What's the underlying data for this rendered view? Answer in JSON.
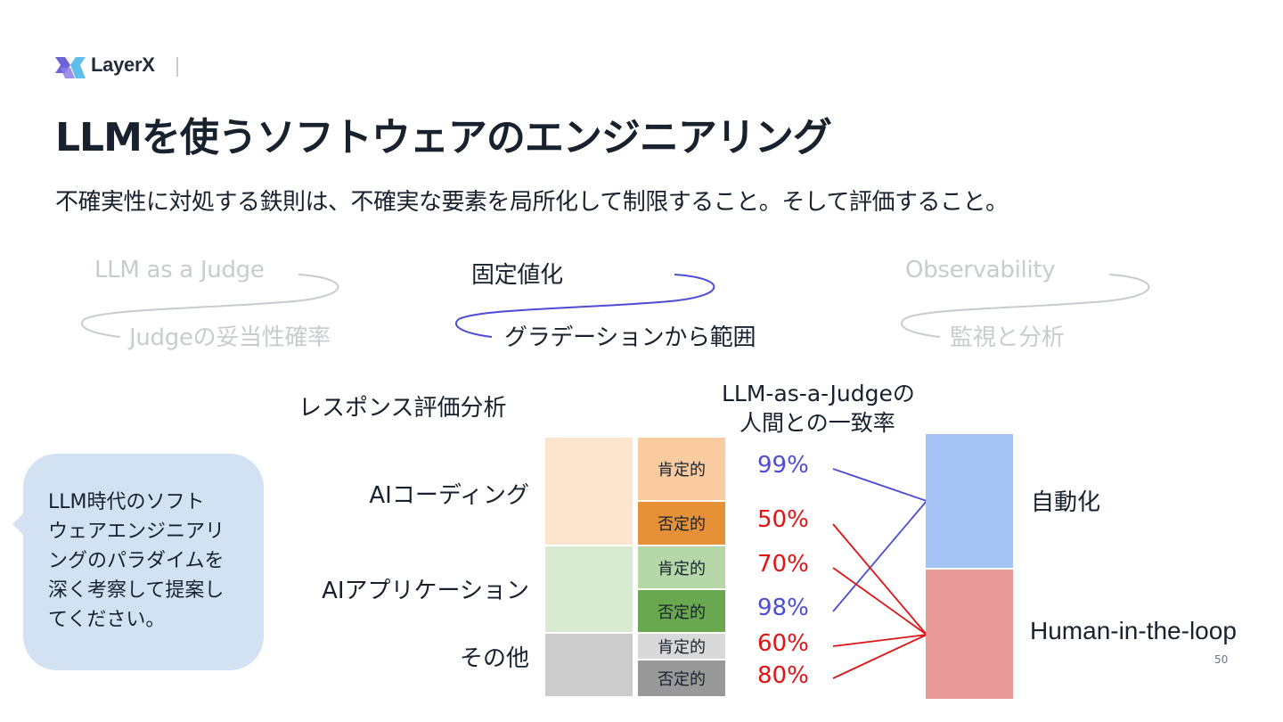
{
  "header": {
    "brand": "LayerX",
    "title": "LLMを使うソフトウェアのエンジニアリング",
    "subtitle": "不確実性に対処する鉄則は、不確実な要素を局所化して制限すること。そして評価すること。"
  },
  "flows": [
    {
      "top": "LLM as a Judge",
      "bottom": "Judgeの妥当性確率",
      "state": "muted"
    },
    {
      "top": "固定値化",
      "bottom": "グラデーションから範囲",
      "state": "active"
    },
    {
      "top": "Observability",
      "bottom": "監視と分析",
      "state": "muted"
    }
  ],
  "analysis": {
    "section_title": "レスポンス評価分析",
    "agreement_title_line1": "LLM-as-a-Judgeの",
    "agreement_title_line2": "人間との一致率",
    "categories": [
      {
        "label": "AIコーディング",
        "color": "#fce5cf",
        "subs": [
          {
            "label": "肯定的",
            "color": "#f9cb9f",
            "pct": "99%",
            "pct_color": "#4c4cd6",
            "target": "automation"
          },
          {
            "label": "否定的",
            "color": "#e69138",
            "pct": "50%",
            "pct_color": "#e01414",
            "target": "human"
          }
        ]
      },
      {
        "label": "AIアプリケーション",
        "color": "#d9ead3",
        "subs": [
          {
            "label": "肯定的",
            "color": "#b6d7a8",
            "pct": "70%",
            "pct_color": "#e01414",
            "target": "human"
          },
          {
            "label": "否定的",
            "color": "#6aa84f",
            "pct": "98%",
            "pct_color": "#4c4cd6",
            "target": "automation"
          }
        ]
      },
      {
        "label": "その他",
        "color": "#cccccc",
        "subs": [
          {
            "label": "肯定的",
            "color": "#d9d9d9",
            "pct": "60%",
            "pct_color": "#e01414",
            "target": "human"
          },
          {
            "label": "否定的",
            "color": "#999999",
            "pct": "80%",
            "pct_color": "#e01414",
            "target": "human"
          }
        ]
      }
    ],
    "outcomes": {
      "automation": {
        "label": "自動化",
        "color": "#a4c2f4"
      },
      "human": {
        "label": "Human-in-the-loop",
        "color": "#ea9999"
      }
    }
  },
  "bubble": {
    "text_line1": "LLM時代のソフト",
    "text_line2": "ウェアエンジニアリ",
    "text_line3": "ングのパラダイムを",
    "text_line4": "深く考察して提案し",
    "text_line5": "てください。"
  },
  "footer": {
    "page_number": "50"
  }
}
